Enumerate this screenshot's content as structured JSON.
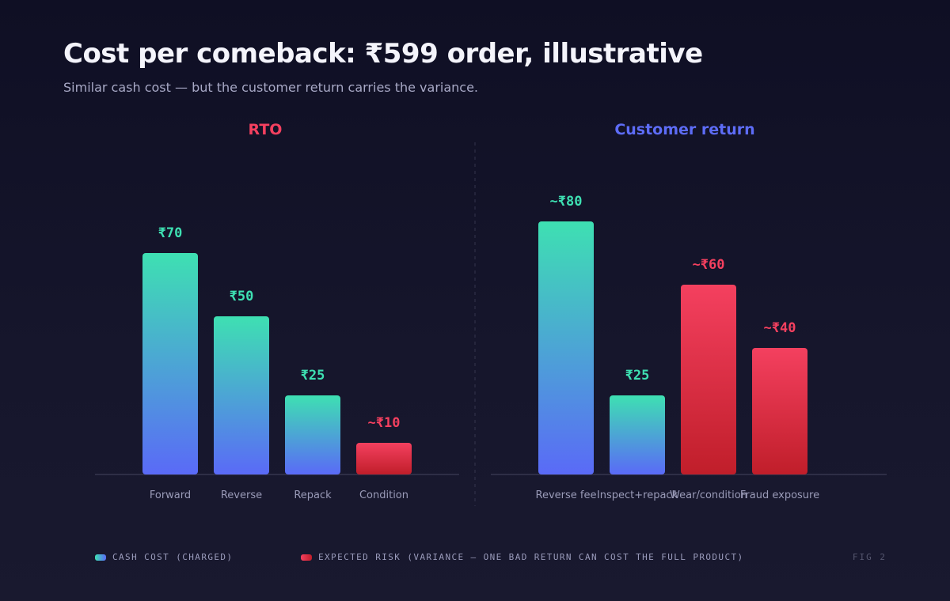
{
  "title": "Cost per comeback: ₹599 order, illustrative",
  "subtitle": "Similar cash cost — but the customer return carries the variance.",
  "colors": {
    "cash_top": "#3ee0b2",
    "cash_bottom": "#5a6af7",
    "risk_top": "#f4405f",
    "risk_bottom": "#c01e2a",
    "rto_title": "#f4405f",
    "return_title": "#5d6cf6",
    "cash_label": "#3ee0b2",
    "risk_label": "#f4405f"
  },
  "chart_data": [
    {
      "type": "bar",
      "title": "RTO",
      "categories": [
        "Forward",
        "Reverse",
        "Repack",
        "Condition"
      ],
      "values": [
        70,
        50,
        25,
        10
      ],
      "value_labels": [
        "₹70",
        "₹50",
        "₹25",
        "~₹10"
      ],
      "kinds": [
        "cash",
        "cash",
        "cash",
        "risk"
      ],
      "ylim": [
        0,
        80
      ],
      "grid": false
    },
    {
      "type": "bar",
      "title": "Customer return",
      "categories": [
        "Reverse fee",
        "Inspect+repack",
        "Wear/condition",
        "Fraud exposure"
      ],
      "values": [
        80,
        25,
        60,
        40
      ],
      "value_labels": [
        "~₹80",
        "₹25",
        "~₹60",
        "~₹40"
      ],
      "kinds": [
        "cash",
        "cash",
        "risk",
        "risk"
      ],
      "ylim": [
        0,
        80
      ],
      "grid": false
    }
  ],
  "legend": {
    "cash": "CASH COST (CHARGED)",
    "risk": "EXPECTED RISK (VARIANCE — ONE BAD RETURN CAN COST THE FULL PRODUCT)"
  },
  "fig_label": "FIG 2"
}
